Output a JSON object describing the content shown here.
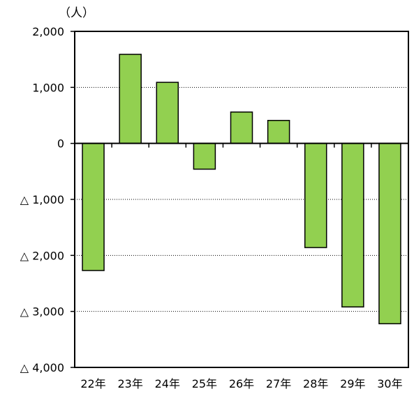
{
  "chart_data": {
    "type": "bar",
    "ylabel": "（人）",
    "categories": [
      "22年",
      "23年",
      "24年",
      "25年",
      "26年",
      "27年",
      "28年",
      "29年",
      "30年"
    ],
    "values": [
      -2270,
      1590,
      1090,
      -460,
      560,
      410,
      -1860,
      -2920,
      -3220
    ],
    "ylim": [
      -4000,
      2000
    ],
    "yticks": [
      {
        "value": 2000,
        "label": "2,000"
      },
      {
        "value": 1000,
        "label": "1,000"
      },
      {
        "value": 0,
        "label": "0"
      },
      {
        "value": -1000,
        "label": "△ 1,000"
      },
      {
        "value": -2000,
        "label": "△ 2,000"
      },
      {
        "value": -3000,
        "label": "△ 3,000"
      },
      {
        "value": -4000,
        "label": "△ 4,000"
      }
    ],
    "grid": true,
    "bar_color": "#92d050",
    "bar_edge_color": "#000000"
  }
}
